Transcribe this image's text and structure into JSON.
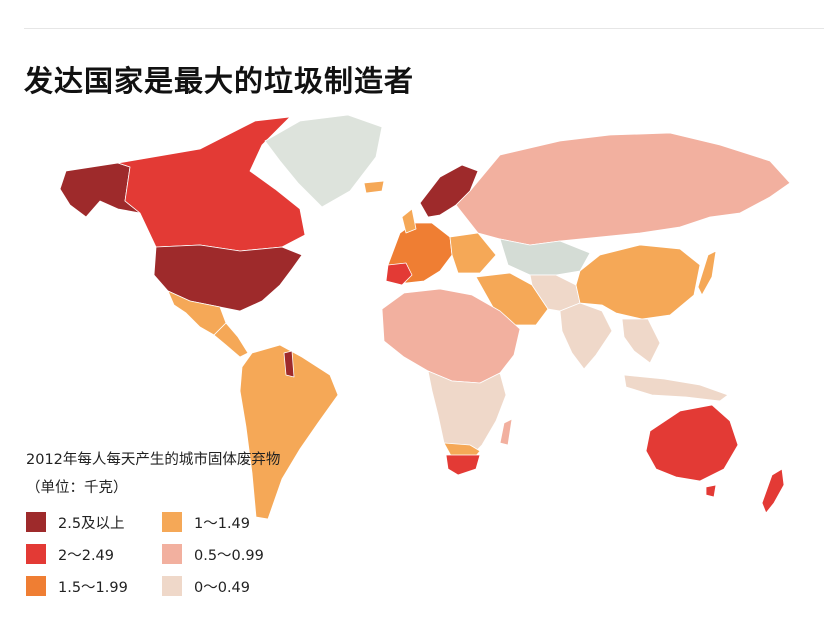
{
  "title": "发达国家是最大的垃圾制造者",
  "legend": {
    "title": "2012年每人每天产生的城市固体废弃物（单位：千克）",
    "items": [
      {
        "label": "2.5及以上",
        "color": "#9e2a2b"
      },
      {
        "label": "1～1.49",
        "color": "#f5a857"
      },
      {
        "label": "2～2.49",
        "color": "#e33a35"
      },
      {
        "label": "0.5～0.99",
        "color": "#f2b09f"
      },
      {
        "label": "1.5～1.99",
        "color": "#ef7e33"
      },
      {
        "label": "0～0.49",
        "color": "#efd8c9"
      }
    ]
  },
  "colors": {
    "no_data": "#d4dcd5",
    "greenland": "#dde3dc"
  }
}
